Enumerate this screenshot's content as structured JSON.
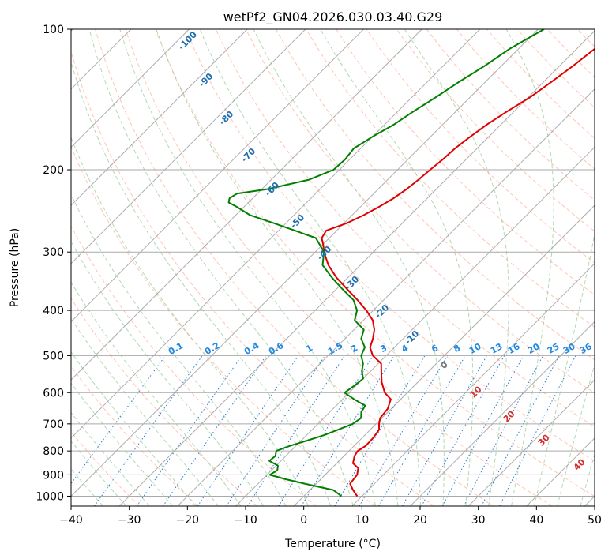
{
  "chart_data": {
    "type": "line",
    "title": "wetPf2_GN04.2026.030.03.40.G29",
    "xlabel": "Temperature (°C)",
    "ylabel": "Pressure (hPa)",
    "xlim": [
      -40,
      50
    ],
    "ylim": [
      1050,
      100
    ],
    "yscale": "log",
    "x_ticks": [
      -40,
      -30,
      -20,
      -10,
      0,
      10,
      20,
      30,
      40,
      50
    ],
    "y_ticks": [
      1000,
      900,
      800,
      700,
      600,
      500,
      400,
      300,
      200,
      100
    ],
    "grid": true,
    "skew": true,
    "series": [
      {
        "color": "#e00000",
        "pressure": [
          1000,
          970,
          940,
          900,
          870,
          850,
          820,
          800,
          780,
          750,
          720,
          700,
          680,
          650,
          620,
          600,
          570,
          550,
          520,
          500,
          480,
          460,
          440,
          420,
          400,
          380,
          360,
          340,
          320,
          300,
          290,
          280,
          270,
          260,
          250,
          240,
          230,
          220,
          210,
          200,
          190,
          180,
          170,
          160,
          150,
          140,
          130,
          120,
          110,
          100
        ],
        "temperature": [
          9.2,
          7.4,
          5.8,
          5.5,
          4.5,
          2.8,
          1.8,
          1.5,
          2.0,
          1.9,
          1.5,
          0.5,
          -0.3,
          -0.6,
          -1.7,
          -3.9,
          -6.2,
          -7.5,
          -9.5,
          -12.3,
          -14.2,
          -15.2,
          -16.5,
          -18.4,
          -21.2,
          -24.5,
          -28.2,
          -32.0,
          -35.5,
          -38.5,
          -39.8,
          -41.3,
          -41.8,
          -39.5,
          -38.0,
          -36.8,
          -35.8,
          -35.1,
          -34.7,
          -34.4,
          -34.0,
          -33.8,
          -33.2,
          -32.4,
          -31.2,
          -29.7,
          -28.7,
          -27.7,
          -26.9,
          -26.0
        ]
      },
      {
        "color": "#007f00",
        "pressure": [
          1000,
          970,
          940,
          920,
          900,
          880,
          860,
          840,
          820,
          800,
          780,
          760,
          740,
          720,
          700,
          680,
          660,
          640,
          620,
          600,
          580,
          560,
          540,
          520,
          500,
          480,
          460,
          440,
          420,
          400,
          380,
          360,
          340,
          320,
          300,
          280,
          260,
          250,
          240,
          235,
          230,
          225,
          220,
          210,
          200,
          190,
          180,
          170,
          160,
          150,
          140,
          130,
          120,
          110,
          100
        ],
        "temperature": [
          6.5,
          4.0,
          -2.0,
          -6.0,
          -9.5,
          -9.0,
          -9.7,
          -12.0,
          -11.8,
          -12.5,
          -11.0,
          -9.0,
          -7.0,
          -5.5,
          -4.0,
          -3.6,
          -4.6,
          -5.0,
          -8.0,
          -10.8,
          -10.3,
          -10.0,
          -11.5,
          -12.6,
          -14.3,
          -15.1,
          -17.2,
          -18.3,
          -21.5,
          -22.8,
          -25.2,
          -29.0,
          -32.8,
          -36.5,
          -38.5,
          -42.3,
          -52.2,
          -57.6,
          -61.3,
          -63.4,
          -64.0,
          -63.5,
          -59.0,
          -53.5,
          -51.0,
          -50.8,
          -51.2,
          -50.0,
          -48.4,
          -47.3,
          -45.9,
          -44.6,
          -42.9,
          -41.5,
          -39.0
        ]
      }
    ],
    "background_lines": {
      "isotherms_c": [
        -130,
        -120,
        -110,
        -100,
        -90,
        -80,
        -70,
        -60,
        -50,
        -40,
        -30,
        -20,
        -10,
        0,
        10,
        20,
        30,
        40,
        50
      ],
      "dry_adiabat_labels": [
        "-100",
        "-90",
        "-80",
        "-70",
        "-60",
        "-50",
        "-40",
        "-30",
        "-20",
        "-10"
      ],
      "moist_adiabat_labels": [
        "0",
        "10",
        "20",
        "30",
        "40"
      ],
      "mixing_ratio_labels": [
        "0.1",
        "0.2",
        "0.4",
        "0.6",
        "1",
        "1.5",
        "2",
        "3",
        "4",
        "6",
        "8",
        "10",
        "13",
        "16",
        "20",
        "25",
        "30",
        "36"
      ],
      "mixing_ratio_values": [
        0.1,
        0.2,
        0.4,
        0.6,
        1,
        1.5,
        2,
        3,
        4,
        6,
        8,
        10,
        13,
        16,
        20,
        25,
        30,
        36
      ]
    }
  }
}
